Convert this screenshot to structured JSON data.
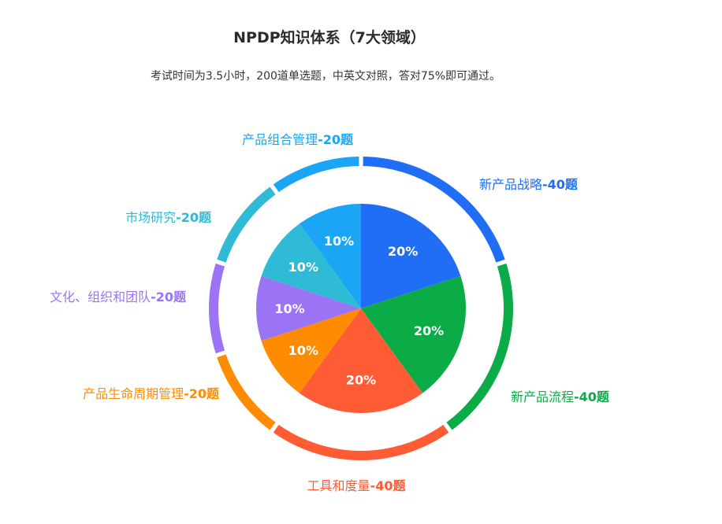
{
  "title": "NPDP知识体系（7大领域）",
  "subtitle": "考试时间为3.5小时，200道单选题，中英文对照，答对75%即可通过。",
  "chart_data": {
    "type": "pie",
    "title": "NPDP知识体系（7大领域）",
    "subtitle": "考试时间为3.5小时，200道单选题，中英文对照，答对75%即可通过。",
    "slices": [
      {
        "name": "新产品战略",
        "count_label": "-40题",
        "questions": 40,
        "percent_label": "20%",
        "color": "#1f6ef5"
      },
      {
        "name": "新产品流程",
        "count_label": "-40题",
        "questions": 40,
        "percent_label": "20%",
        "color": "#0bac48"
      },
      {
        "name": "工具和度量",
        "count_label": "-40题",
        "questions": 40,
        "percent_label": "20%",
        "color": "#ff5b35"
      },
      {
        "name": "产品生命周期管理",
        "count_label": "-20题",
        "questions": 20,
        "percent_label": "10%",
        "color": "#ff8c00"
      },
      {
        "name": "文化、组织和团队",
        "count_label": "-20题",
        "questions": 20,
        "percent_label": "10%",
        "color": "#9b74f5"
      },
      {
        "name": "市场研究",
        "count_label": "-20题",
        "questions": 20,
        "percent_label": "10%",
        "color": "#2fbad6"
      },
      {
        "name": "产品组合管理",
        "count_label": "-20题",
        "questions": 20,
        "percent_label": "10%",
        "color": "#1aa6f5"
      }
    ]
  }
}
